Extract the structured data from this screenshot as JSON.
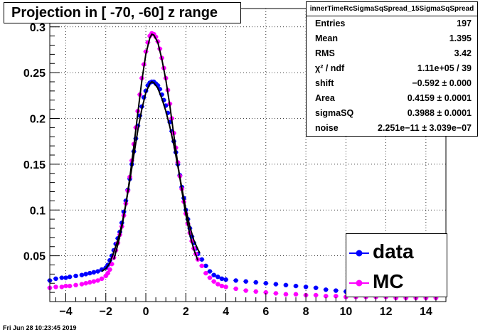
{
  "header": {
    "title": "Projection in [ -70, -60] z range"
  },
  "stats": {
    "title": "innerTimeRcSigmaSqSpread_15SigmaSqSpread",
    "rows": [
      {
        "label": "Entries",
        "value": "197"
      },
      {
        "label": "Mean",
        "value": "1.395"
      },
      {
        "label": "RMS",
        "value": "3.42"
      },
      {
        "label": "χ² / ndf",
        "value": "1.11e+05 / 39"
      },
      {
        "label": "shift",
        "value": "−0.592 ± 0.000"
      },
      {
        "label": "Area",
        "value": "0.4159 ± 0.0001"
      },
      {
        "label": "sigmaSQ",
        "value": "0.3988 ± 0.0001"
      },
      {
        "label": "noise",
        "value": "2.251e−11 ± 3.039e−07"
      }
    ]
  },
  "legend": {
    "items": [
      {
        "label": "data",
        "color": "#0000ff"
      },
      {
        "label": "MC",
        "color": "#ff00ff"
      }
    ]
  },
  "timestamp": "Fri Jun 28 10:23:45 2019",
  "chart_data": {
    "type": "scatter",
    "xlim": [
      -4.8,
      15.0
    ],
    "ylim": [
      0,
      0.32
    ],
    "xticks": [
      -4,
      -2,
      0,
      2,
      4,
      6,
      8,
      10,
      12,
      14
    ],
    "xtick_labels": [
      "−4",
      "−2",
      "0",
      "2",
      "4",
      "6",
      "8",
      "10",
      "12",
      "14"
    ],
    "yticks": [
      0.05,
      0.1,
      0.15,
      0.2,
      0.25,
      0.3
    ],
    "ytick_labels": [
      "0.05",
      "0.1",
      "0.15",
      "0.2",
      "0.25",
      "0.3"
    ],
    "grid": true,
    "series": [
      {
        "name": "data",
        "color": "#0000ff",
        "points": [
          [
            -4.8,
            0.023
          ],
          [
            -4.5,
            0.025
          ],
          [
            -4.2,
            0.026
          ],
          [
            -4.0,
            0.026
          ],
          [
            -3.8,
            0.027
          ],
          [
            -3.5,
            0.028
          ],
          [
            -3.2,
            0.029
          ],
          [
            -3.0,
            0.03
          ],
          [
            -2.8,
            0.031
          ],
          [
            -2.6,
            0.032
          ],
          [
            -2.4,
            0.033
          ],
          [
            -2.2,
            0.035
          ],
          [
            -2.0,
            0.037
          ],
          [
            -1.9,
            0.04
          ],
          [
            -1.8,
            0.045
          ],
          [
            -1.7,
            0.05
          ],
          [
            -1.6,
            0.056
          ],
          [
            -1.5,
            0.063
          ],
          [
            -1.4,
            0.069
          ],
          [
            -1.3,
            0.076
          ],
          [
            -1.2,
            0.086
          ],
          [
            -1.1,
            0.098
          ],
          [
            -1.0,
            0.11
          ],
          [
            -0.9,
            0.122
          ],
          [
            -0.8,
            0.134
          ],
          [
            -0.7,
            0.15
          ],
          [
            -0.6,
            0.164
          ],
          [
            -0.5,
            0.178
          ],
          [
            -0.4,
            0.192
          ],
          [
            -0.3,
            0.203
          ],
          [
            -0.2,
            0.213
          ],
          [
            -0.1,
            0.223
          ],
          [
            0.0,
            0.23
          ],
          [
            0.1,
            0.236
          ],
          [
            0.2,
            0.239
          ],
          [
            0.3,
            0.24
          ],
          [
            0.4,
            0.24
          ],
          [
            0.5,
            0.238
          ],
          [
            0.6,
            0.236
          ],
          [
            0.7,
            0.232
          ],
          [
            0.8,
            0.226
          ],
          [
            0.9,
            0.22
          ],
          [
            1.0,
            0.214
          ],
          [
            1.1,
            0.206
          ],
          [
            1.2,
            0.196
          ],
          [
            1.3,
            0.186
          ],
          [
            1.4,
            0.175
          ],
          [
            1.5,
            0.163
          ],
          [
            1.6,
            0.15
          ],
          [
            1.7,
            0.138
          ],
          [
            1.8,
            0.125
          ],
          [
            1.9,
            0.113
          ],
          [
            2.0,
            0.1
          ],
          [
            2.1,
            0.09
          ],
          [
            2.2,
            0.08
          ],
          [
            2.3,
            0.071
          ],
          [
            2.4,
            0.064
          ],
          [
            2.5,
            0.058
          ],
          [
            2.6,
            0.052
          ],
          [
            2.8,
            0.046
          ],
          [
            3.0,
            0.039
          ],
          [
            3.2,
            0.033
          ],
          [
            3.4,
            0.029
          ],
          [
            3.6,
            0.027
          ],
          [
            3.8,
            0.025
          ],
          [
            4.0,
            0.024
          ],
          [
            4.5,
            0.023
          ],
          [
            5.0,
            0.022
          ],
          [
            5.5,
            0.021
          ],
          [
            6.0,
            0.02
          ],
          [
            6.5,
            0.019
          ],
          [
            7.0,
            0.018
          ],
          [
            7.5,
            0.017
          ],
          [
            8.0,
            0.016
          ],
          [
            8.5,
            0.015
          ],
          [
            9.0,
            0.013
          ],
          [
            9.5,
            0.012
          ],
          [
            10.0,
            0.011
          ],
          [
            10.5,
            0.01
          ],
          [
            11.0,
            0.01
          ],
          [
            11.5,
            0.009
          ],
          [
            12.0,
            0.009
          ],
          [
            12.5,
            0.008
          ],
          [
            13.0,
            0.008
          ],
          [
            13.5,
            0.008
          ],
          [
            14.0,
            0.007
          ],
          [
            14.5,
            0.007
          ]
        ]
      },
      {
        "name": "MC",
        "color": "#ff00ff",
        "points": [
          [
            -4.8,
            0.015
          ],
          [
            -4.5,
            0.016
          ],
          [
            -4.2,
            0.016
          ],
          [
            -4.0,
            0.017
          ],
          [
            -3.8,
            0.017
          ],
          [
            -3.5,
            0.018
          ],
          [
            -3.2,
            0.019
          ],
          [
            -3.0,
            0.02
          ],
          [
            -2.8,
            0.021
          ],
          [
            -2.6,
            0.022
          ],
          [
            -2.4,
            0.023
          ],
          [
            -2.2,
            0.025
          ],
          [
            -2.0,
            0.028
          ],
          [
            -1.9,
            0.031
          ],
          [
            -1.8,
            0.035
          ],
          [
            -1.7,
            0.041
          ],
          [
            -1.6,
            0.048
          ],
          [
            -1.5,
            0.056
          ],
          [
            -1.4,
            0.064
          ],
          [
            -1.3,
            0.073
          ],
          [
            -1.2,
            0.082
          ],
          [
            -1.1,
            0.094
          ],
          [
            -1.0,
            0.107
          ],
          [
            -0.9,
            0.121
          ],
          [
            -0.8,
            0.136
          ],
          [
            -0.7,
            0.154
          ],
          [
            -0.6,
            0.172
          ],
          [
            -0.5,
            0.19
          ],
          [
            -0.4,
            0.208
          ],
          [
            -0.3,
            0.226
          ],
          [
            -0.2,
            0.244
          ],
          [
            -0.1,
            0.259
          ],
          [
            0.0,
            0.273
          ],
          [
            0.1,
            0.283
          ],
          [
            0.2,
            0.29
          ],
          [
            0.3,
            0.293
          ],
          [
            0.4,
            0.292
          ],
          [
            0.5,
            0.289
          ],
          [
            0.6,
            0.284
          ],
          [
            0.7,
            0.276
          ],
          [
            0.8,
            0.266
          ],
          [
            0.9,
            0.255
          ],
          [
            1.0,
            0.244
          ],
          [
            1.1,
            0.231
          ],
          [
            1.2,
            0.216
          ],
          [
            1.3,
            0.2
          ],
          [
            1.4,
            0.184
          ],
          [
            1.5,
            0.168
          ],
          [
            1.6,
            0.152
          ],
          [
            1.7,
            0.137
          ],
          [
            1.8,
            0.123
          ],
          [
            1.9,
            0.109
          ],
          [
            2.0,
            0.096
          ],
          [
            2.1,
            0.085
          ],
          [
            2.2,
            0.075
          ],
          [
            2.3,
            0.066
          ],
          [
            2.4,
            0.058
          ],
          [
            2.5,
            0.052
          ],
          [
            2.6,
            0.046
          ],
          [
            2.8,
            0.039
          ],
          [
            3.0,
            0.031
          ],
          [
            3.2,
            0.026
          ],
          [
            3.4,
            0.022
          ],
          [
            3.6,
            0.019
          ],
          [
            3.8,
            0.017
          ],
          [
            4.0,
            0.016
          ],
          [
            4.5,
            0.014
          ],
          [
            5.0,
            0.012
          ],
          [
            5.5,
            0.011
          ],
          [
            6.0,
            0.01
          ],
          [
            6.5,
            0.009
          ],
          [
            7.0,
            0.008
          ],
          [
            7.5,
            0.008
          ],
          [
            8.0,
            0.007
          ],
          [
            8.5,
            0.007
          ],
          [
            9.0,
            0.006
          ],
          [
            9.5,
            0.006
          ],
          [
            10.0,
            0.005
          ],
          [
            10.5,
            0.005
          ],
          [
            11.0,
            0.005
          ],
          [
            11.5,
            0.005
          ],
          [
            12.0,
            0.005
          ],
          [
            12.5,
            0.004
          ],
          [
            13.0,
            0.004
          ],
          [
            13.5,
            0.004
          ],
          [
            14.0,
            0.004
          ],
          [
            14.5,
            0.004
          ]
        ]
      }
    ],
    "fit_curves": [
      {
        "color": "#000000",
        "points": [
          [
            -2.2,
            0.033
          ],
          [
            -2.0,
            0.036
          ],
          [
            -1.8,
            0.042
          ],
          [
            -1.6,
            0.054
          ],
          [
            -1.4,
            0.067
          ],
          [
            -1.2,
            0.084
          ],
          [
            -1.0,
            0.106
          ],
          [
            -0.8,
            0.132
          ],
          [
            -0.6,
            0.16
          ],
          [
            -0.4,
            0.187
          ],
          [
            -0.2,
            0.21
          ],
          [
            0.0,
            0.228
          ],
          [
            0.2,
            0.238
          ],
          [
            0.3,
            0.24
          ],
          [
            0.4,
            0.239
          ],
          [
            0.6,
            0.233
          ],
          [
            0.8,
            0.222
          ],
          [
            1.0,
            0.208
          ],
          [
            1.2,
            0.191
          ],
          [
            1.4,
            0.171
          ],
          [
            1.6,
            0.148
          ],
          [
            1.8,
            0.124
          ],
          [
            2.0,
            0.101
          ],
          [
            2.2,
            0.082
          ],
          [
            2.4,
            0.067
          ],
          [
            2.6,
            0.057
          ],
          [
            2.7,
            0.053
          ]
        ]
      },
      {
        "color": "#000000",
        "points": [
          [
            -1.6,
            0.046
          ],
          [
            -1.4,
            0.062
          ],
          [
            -1.2,
            0.081
          ],
          [
            -1.0,
            0.106
          ],
          [
            -0.8,
            0.135
          ],
          [
            -0.6,
            0.17
          ],
          [
            -0.4,
            0.206
          ],
          [
            -0.2,
            0.241
          ],
          [
            0.0,
            0.27
          ],
          [
            0.2,
            0.288
          ],
          [
            0.3,
            0.292
          ],
          [
            0.4,
            0.291
          ],
          [
            0.6,
            0.283
          ],
          [
            0.8,
            0.265
          ],
          [
            1.0,
            0.242
          ],
          [
            1.2,
            0.214
          ],
          [
            1.4,
            0.182
          ],
          [
            1.6,
            0.15
          ],
          [
            1.8,
            0.121
          ],
          [
            2.0,
            0.095
          ],
          [
            2.2,
            0.073
          ],
          [
            2.4,
            0.057
          ],
          [
            2.6,
            0.045
          ]
        ]
      }
    ]
  }
}
